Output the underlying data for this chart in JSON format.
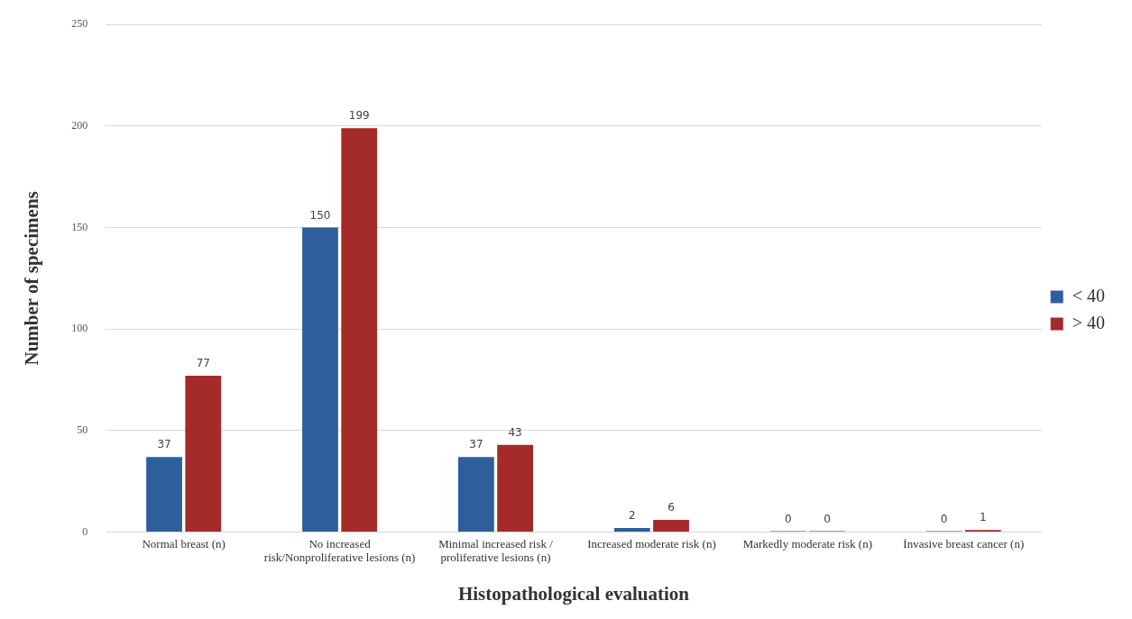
{
  "chart_data": {
    "type": "bar",
    "xlabel": "Histopathological evaluation",
    "ylabel": "Number of specimens",
    "categories": [
      "Normal breast (n)",
      "No increased risk/Nonproliferative lesions (n)",
      "Minimal increased risk / proliferative lesions (n)",
      "Increased moderate risk (n)",
      "Markedly moderate risk (n)",
      "İnvasive breast cancer (n)"
    ],
    "series": [
      {
        "name": "< 40",
        "color": "#2e5e9c",
        "values": [
          37,
          150,
          37,
          2,
          0,
          0
        ]
      },
      {
        "name": "> 40",
        "color": "#a52a2a",
        "values": [
          77,
          199,
          43,
          6,
          0,
          1
        ]
      }
    ],
    "ylim": [
      0,
      250
    ],
    "yticks": [
      0,
      50,
      100,
      150,
      200,
      250
    ],
    "grid": "y",
    "legend": "right",
    "data_labels": true
  }
}
